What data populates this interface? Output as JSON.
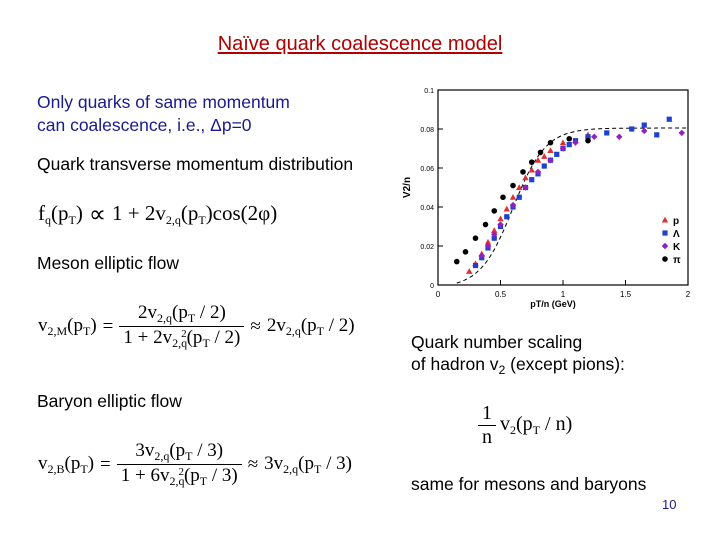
{
  "slide": {
    "title": "Naïve quark coalescence model",
    "intro_line1": "Only quarks of same momentum",
    "intro_line2": "can coalescence, i.e., Δp=0",
    "quark_dist_label": "Quark transverse momentum distribution",
    "meson_label": "Meson elliptic flow",
    "baryon_label": "Baryon elliptic flow",
    "scaling_line1": "Quark number scaling",
    "scaling_line2_prefix": "of hadron v",
    "scaling_line2_sub": "2",
    "scaling_line2_suffix": " (except pions):",
    "same_text": "same for mesons and baryons",
    "page_number": "10"
  },
  "colors": {
    "title": "#b00000",
    "text_blue": "#1a1a8c",
    "p": "#e03030",
    "lambda": "#2040d0",
    "kaon": "#9020c0",
    "pion": "#000000"
  },
  "chart_data": {
    "type": "scatter",
    "xlabel": "pT/n (GeV)",
    "ylabel": "V2/n",
    "xlim": [
      0,
      2
    ],
    "ylim": [
      0,
      0.1
    ],
    "x_ticks": [
      "0",
      "0.5",
      "1",
      "1.5",
      "2"
    ],
    "y_ticks": [
      "0",
      "0.02",
      "0.04",
      "0.06",
      "0.08",
      "0.1"
    ],
    "legend_position": "right",
    "series": [
      {
        "name": "p",
        "marker": "triangle",
        "color": "#e03030",
        "points": [
          [
            0.25,
            0.007
          ],
          [
            0.3,
            0.011
          ],
          [
            0.35,
            0.016
          ],
          [
            0.4,
            0.022
          ],
          [
            0.45,
            0.028
          ],
          [
            0.5,
            0.034
          ],
          [
            0.55,
            0.039
          ],
          [
            0.6,
            0.045
          ],
          [
            0.65,
            0.05
          ],
          [
            0.7,
            0.055
          ],
          [
            0.75,
            0.059
          ],
          [
            0.8,
            0.064
          ],
          [
            0.85,
            0.066
          ],
          [
            0.9,
            0.069
          ],
          [
            1.0,
            0.073
          ],
          [
            1.2,
            0.077
          ]
        ]
      },
      {
        "name": "Λ",
        "marker": "square",
        "color": "#2040d0",
        "points": [
          [
            0.3,
            0.01
          ],
          [
            0.35,
            0.014
          ],
          [
            0.4,
            0.019
          ],
          [
            0.45,
            0.024
          ],
          [
            0.5,
            0.03
          ],
          [
            0.55,
            0.035
          ],
          [
            0.6,
            0.04
          ],
          [
            0.65,
            0.045
          ],
          [
            0.7,
            0.05
          ],
          [
            0.75,
            0.054
          ],
          [
            0.8,
            0.057
          ],
          [
            0.85,
            0.061
          ],
          [
            0.9,
            0.064
          ],
          [
            0.95,
            0.067
          ],
          [
            1.0,
            0.07
          ],
          [
            1.05,
            0.072
          ],
          [
            1.1,
            0.074
          ],
          [
            1.2,
            0.076
          ],
          [
            1.35,
            0.078
          ],
          [
            1.55,
            0.08
          ],
          [
            1.65,
            0.082
          ],
          [
            1.75,
            0.077
          ],
          [
            1.85,
            0.085
          ]
        ]
      },
      {
        "name": "K",
        "marker": "diamond",
        "color": "#9020c0",
        "points": [
          [
            0.35,
            0.015
          ],
          [
            0.4,
            0.02
          ],
          [
            0.45,
            0.026
          ],
          [
            0.5,
            0.031
          ],
          [
            0.6,
            0.041
          ],
          [
            0.7,
            0.05
          ],
          [
            0.8,
            0.058
          ],
          [
            0.9,
            0.064
          ],
          [
            1.0,
            0.07
          ],
          [
            1.1,
            0.073
          ],
          [
            1.25,
            0.076
          ],
          [
            1.45,
            0.076
          ],
          [
            1.65,
            0.079
          ],
          [
            1.95,
            0.078
          ]
        ]
      },
      {
        "name": "π",
        "marker": "circle",
        "color": "#000000",
        "points": [
          [
            0.15,
            0.012
          ],
          [
            0.22,
            0.017
          ],
          [
            0.3,
            0.024
          ],
          [
            0.38,
            0.031
          ],
          [
            0.45,
            0.038
          ],
          [
            0.52,
            0.045
          ],
          [
            0.6,
            0.051
          ],
          [
            0.68,
            0.058
          ],
          [
            0.75,
            0.063
          ],
          [
            0.82,
            0.068
          ],
          [
            0.9,
            0.073
          ],
          [
            1.05,
            0.075
          ],
          [
            1.2,
            0.074
          ]
        ]
      }
    ]
  }
}
